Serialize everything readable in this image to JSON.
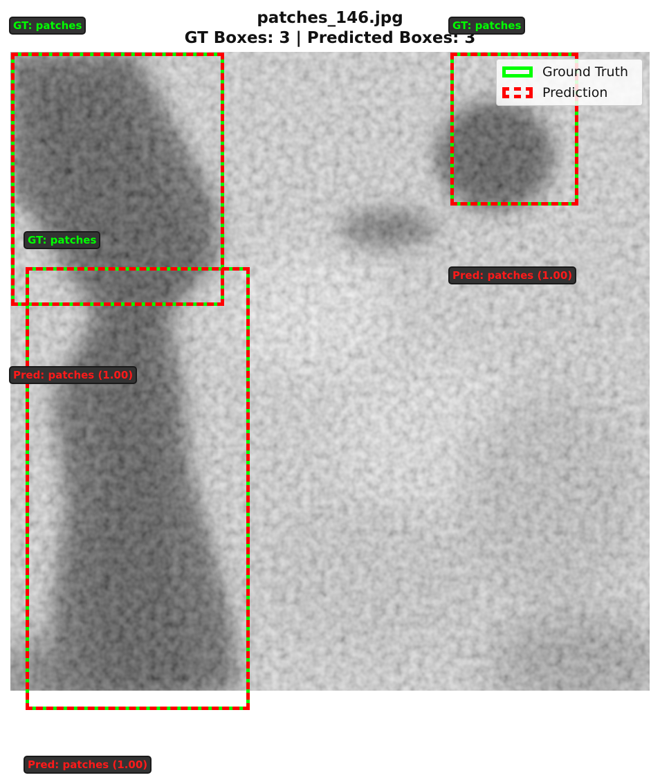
{
  "figure": {
    "filename": "patches_146.jpg",
    "summary": "GT Boxes: 3 | Predicted Boxes: 3"
  },
  "legend": {
    "items": [
      {
        "label": "Ground Truth",
        "style": "solid",
        "color": "#00ff00"
      },
      {
        "label": "Prediction",
        "style": "dashed",
        "color": "#ff0000"
      }
    ]
  },
  "labels": {
    "gt": [
      "GT: patches",
      "GT: patches",
      "GT: patches"
    ],
    "pred": [
      "Pred: patches (1.00)",
      "Pred: patches (1.00)",
      "Pred: patches (1.00)"
    ]
  },
  "colors": {
    "ground_truth": "#00ff00",
    "prediction": "#ff0000",
    "label_background": "#333333"
  }
}
